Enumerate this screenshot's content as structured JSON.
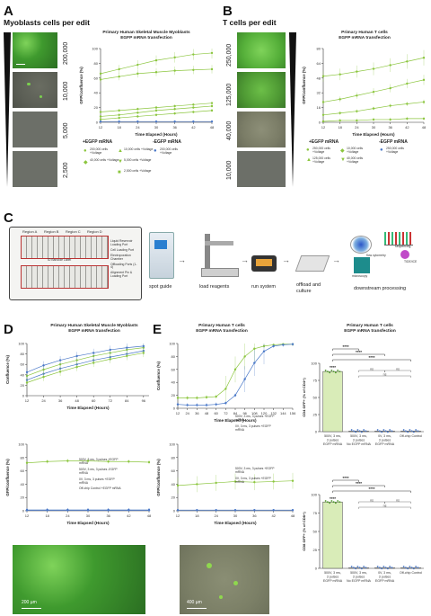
{
  "panelA": {
    "label": "A",
    "title": "Myoblasts cells per edit",
    "densities": [
      "200,000",
      "10,000",
      "5,000",
      "2,500"
    ],
    "chart_title": "Primary Human Skeletal Muscle Myoblasts",
    "chart_subtitle": "EGFP mRNA transfection",
    "legend_egfp": "+EGFP mRNA",
    "legend_noegfp": "-EGFP mRNA",
    "legend_items": [
      "200,000 cells +Voltage",
      "10,000 cells +Voltage",
      "5,000 cells +Voltage",
      "2,500 cells +Voltage",
      "40,000 cells +Voltage",
      "200,000 cells +Voltage"
    ],
    "scalebar_label": "200 µm"
  },
  "panelB": {
    "label": "B",
    "title": "T cells per edit",
    "densities": [
      "250,000",
      "125,000",
      "40,000",
      "10,000"
    ],
    "chart_title": "Primary Human T cells",
    "chart_subtitle": "EGFP mRNA transfection",
    "legend_egfp": "+EGFP mRNA",
    "legend_noegfp": "-EGFP mRNA",
    "legend_items": [
      "250,000 cells +Voltage",
      "125,000 cells +Voltage",
      "10,000 cells +Voltage",
      "40,000 cells +Voltage",
      "250,000 cells +Voltage"
    ]
  },
  "panelC": {
    "label": "C",
    "chip_regions": [
      "Region A",
      "Region B",
      "Region C",
      "Region D"
    ],
    "chip_center": "ID Barcode Label",
    "chip_legend": [
      "Liquid Reservoir Loading Port",
      "Cell Loading Port",
      "Electroporation Chamber",
      "Offloading Ports (1-4)",
      "Alignment Pin & Loading Port"
    ],
    "steps": [
      "spot guide",
      "load reagents",
      "run system",
      "offload and culture",
      "downstream processing"
    ],
    "downstream": [
      "flow cytometry",
      "sequencing",
      "TIDE/ICE",
      "microscopy"
    ]
  },
  "panelD": {
    "label": "D",
    "chart_title": "Primary Human Skeletal Muscle Myoblasts",
    "chart_subtitle": "EGFP mRNA transfection",
    "y1": "Confluence (%)",
    "y2": "GFP/confluence (%)",
    "xlabel": "Time Elapsed (Hours)",
    "legend": [
      "500V, 3 ms, 3 pulses +EGFP mRNA",
      "500V, 3 ms, 3 pulses -EGFP mRNA",
      "0V, 3 ms, 3 pulses +EGFP mRNA",
      "Off-chip Control +EGFP mRNA"
    ],
    "scalebar_label": "200 µm"
  },
  "panelE": {
    "label": "E",
    "chart_title": "Primary Human T cells",
    "chart_subtitle": "EGFP mRNA transfection",
    "y1": "Confluence (%)",
    "y2": "GFP/confluence (%)",
    "xlabel": "Time Elapsed (Hours)",
    "legend": [
      "500V, 3 ms, 3 pulses +EGFP mRNA",
      "0V, 3 ms, 3 pulses +EGFP mRNA"
    ],
    "scalebar_label": "400 µm",
    "bar_title": "Primary Human T cells",
    "bar_subtitle": "EGFP mRNA transfection",
    "bar_ylabel_top": "CD4 GFP+ (% of CD4+)",
    "bar_ylabel_bottom": "CD8 GFP+ (% of CD8+)",
    "sig": [
      "****",
      "****",
      "****",
      "****",
      "ns",
      "ns",
      "ns"
    ],
    "bar_categories": [
      "500V, 3 ms, 3 pulses EGFP mRNA",
      "500V, 3 ms, 3 pulses No EGFP mRNA",
      "0V, 3 ms, 3 pulses EGFP mRNA",
      "Off-chip Control"
    ]
  },
  "colors": {
    "green": "#8cc63f",
    "darkgreen": "#4f9a2a",
    "blue": "#4a78c8",
    "grey": "#9a9a9a"
  },
  "chart_data": [
    {
      "type": "line",
      "title": "Primary Human Skeletal Muscle Myoblasts EGFP mRNA transfection",
      "xlabel": "Time Elapsed (Hours)",
      "ylabel": "GFP/confluence (%)",
      "xlim": [
        12,
        48
      ],
      "ylim": [
        0,
        100
      ],
      "x": [
        12,
        18,
        24,
        30,
        36,
        42,
        48
      ],
      "series": [
        {
          "name": "200,000 cells +Voltage",
          "values": [
            66,
            72,
            78,
            84,
            88,
            92,
            94
          ]
        },
        {
          "name": "10,000 cells +Voltage",
          "values": [
            58,
            62,
            66,
            68,
            70,
            71,
            72
          ]
        },
        {
          "name": "5,000 cells +Voltage",
          "values": [
            8,
            10,
            13,
            16,
            18,
            20,
            22
          ]
        },
        {
          "name": "2,500 cells +Voltage",
          "values": [
            4,
            6,
            8,
            10,
            12,
            14,
            16
          ]
        },
        {
          "name": "40,000 cells +Voltage",
          "values": [
            14,
            16,
            18,
            20,
            22,
            24,
            26
          ]
        },
        {
          "name": "200,000 cells -EGFP",
          "values": [
            1,
            1,
            1,
            1,
            1,
            1,
            1
          ]
        }
      ]
    },
    {
      "type": "line",
      "title": "Primary Human T cells EGFP mRNA transfection",
      "xlabel": "Time Elapsed (Hours)",
      "ylabel": "GFP/confluence (%)",
      "xlim": [
        12,
        48
      ],
      "ylim": [
        0,
        80
      ],
      "x": [
        12,
        18,
        24,
        30,
        36,
        42,
        48
      ],
      "series": [
        {
          "name": "250,000 cells +Voltage",
          "values": [
            50,
            52,
            55,
            58,
            62,
            66,
            70
          ]
        },
        {
          "name": "125,000 cells +Voltage",
          "values": [
            22,
            25,
            29,
            33,
            37,
            42,
            46
          ]
        },
        {
          "name": "40,000 cells +Voltage",
          "values": [
            8,
            10,
            12,
            15,
            18,
            20,
            22
          ]
        },
        {
          "name": "10,000 cells +Voltage",
          "values": [
            1,
            2,
            2,
            3,
            3,
            4,
            4
          ]
        }
      ]
    },
    {
      "type": "line",
      "title": "Primary Human Skeletal Muscle Myoblasts EGFP mRNA transfection",
      "xlabel": "Time Elapsed (Hours)",
      "ylabel": "Confluence (%)",
      "xlim": [
        12,
        100
      ],
      "ylim": [
        0,
        100
      ],
      "x": [
        12,
        24,
        36,
        48,
        60,
        72,
        84,
        96
      ],
      "series": [
        {
          "name": "500V, 3 ms, 3 pulses +EGFP mRNA",
          "values": [
            30,
            42,
            52,
            60,
            68,
            74,
            80,
            86
          ]
        },
        {
          "name": "500V, 3 ms, 3 pulses -EGFP mRNA",
          "values": [
            38,
            50,
            60,
            68,
            76,
            82,
            88,
            92
          ]
        },
        {
          "name": "0V, 3 ms, 3 pulses +EGFP mRNA",
          "values": [
            45,
            58,
            68,
            76,
            82,
            88,
            92,
            95
          ]
        },
        {
          "name": "Off-chip Control +EGFP mRNA",
          "values": [
            25,
            36,
            46,
            55,
            63,
            70,
            76,
            82
          ]
        }
      ]
    },
    {
      "type": "line",
      "title": "Primary Human Skeletal Muscle Myoblasts EGFP mRNA transfection",
      "xlabel": "Time Elapsed (Hours)",
      "ylabel": "GFP/confluence (%)",
      "xlim": [
        12,
        48
      ],
      "ylim": [
        0,
        100
      ],
      "x": [
        12,
        18,
        24,
        30,
        36,
        42,
        48
      ],
      "series": [
        {
          "name": "500V, 3 ms, 3 pulses +EGFP mRNA",
          "values": [
            72,
            74,
            75,
            75,
            74,
            74,
            73
          ]
        },
        {
          "name": "500V, 3 ms, 3 pulses -EGFP mRNA",
          "values": [
            1,
            1,
            1,
            1,
            1,
            1,
            1
          ]
        },
        {
          "name": "0V, 3 ms, 3 pulses +EGFP mRNA",
          "values": [
            1,
            1,
            1,
            1,
            1,
            1,
            1
          ]
        },
        {
          "name": "Off-chip Control +EGFP mRNA",
          "values": [
            1,
            1,
            1,
            1,
            1,
            1,
            1
          ]
        }
      ]
    },
    {
      "type": "line",
      "title": "Primary Human T cells EGFP mRNA transfection",
      "xlabel": "Time Elapsed (Hours)",
      "ylabel": "Confluence (%)",
      "xlim": [
        12,
        156
      ],
      "ylim": [
        0,
        100
      ],
      "x": [
        12,
        24,
        36,
        48,
        60,
        72,
        84,
        96,
        108,
        120,
        132,
        144,
        156
      ],
      "series": [
        {
          "name": "500V, 3 ms, 3 pulses +EGFP mRNA",
          "values": [
            16,
            16,
            16,
            17,
            18,
            30,
            60,
            80,
            92,
            96,
            98,
            99,
            99
          ]
        },
        {
          "name": "0V, 3 ms, 3 pulses +EGFP mRNA",
          "values": [
            6,
            5,
            5,
            5,
            6,
            8,
            20,
            45,
            70,
            88,
            96,
            98,
            99
          ]
        }
      ]
    },
    {
      "type": "line",
      "title": "Primary Human T cells EGFP mRNA transfection",
      "xlabel": "Time Elapsed (Hours)",
      "ylabel": "GFP/confluence (%)",
      "xlim": [
        12,
        48
      ],
      "ylim": [
        0,
        100
      ],
      "x": [
        12,
        18,
        24,
        30,
        36,
        42,
        48
      ],
      "series": [
        {
          "name": "500V, 3 ms, 3 pulses +EGFP mRNA",
          "values": [
            38,
            40,
            42,
            44,
            43,
            44,
            45
          ]
        },
        {
          "name": "0V, 3 ms, 3 pulses +EGFP mRNA",
          "values": [
            1,
            1,
            1,
            1,
            1,
            1,
            1
          ]
        }
      ]
    },
    {
      "type": "bar",
      "title": "Primary Human T cells EGFP mRNA transfection",
      "ylabel": "CD4 GFP+ (% of CD4+)",
      "ylim": [
        0,
        100
      ],
      "categories": [
        "500V, 3 ms, 3 pulses EGFP mRNA",
        "500V, 3 ms, 3 pulses No EGFP mRNA",
        "0V, 3 ms, 3 pulses EGFP mRNA",
        "Off-chip Control"
      ],
      "values": [
        88,
        1,
        1,
        1
      ]
    },
    {
      "type": "bar",
      "title": "Primary Human T cells EGFP mRNA transfection",
      "ylabel": "CD8 GFP+ (% of CD8+)",
      "ylim": [
        0,
        100
      ],
      "categories": [
        "500V, 3 ms, 3 pulses EGFP mRNA",
        "500V, 3 ms, 3 pulses No EGFP mRNA",
        "0V, 3 ms, 3 pulses EGFP mRNA",
        "Off-chip Control"
      ],
      "values": [
        90,
        1,
        1,
        1
      ]
    }
  ]
}
